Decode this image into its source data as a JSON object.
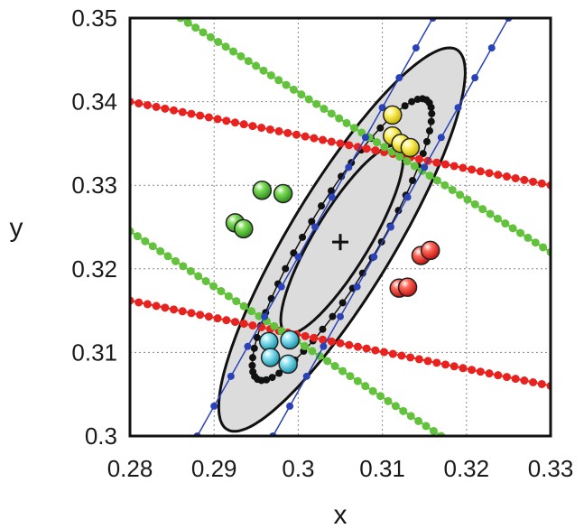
{
  "chart_data": {
    "type": "scatter",
    "xlabel": "x",
    "ylabel": "y",
    "xlim": [
      0.28,
      0.33
    ],
    "ylim": [
      0.3,
      0.35
    ],
    "x_ticks": [
      "0.28",
      "0.29",
      "0.3",
      "0.31",
      "0.32",
      "0.33"
    ],
    "y_ticks": [
      "0.3",
      "0.31",
      "0.32",
      "0.33",
      "0.34",
      "0.35"
    ],
    "grid": true,
    "colors": {
      "red": "#e8221e",
      "green": "#62c23c",
      "blue": "#2a42b8",
      "black": "#111111",
      "yellow": "#f2e21a",
      "cyan": "#54c6dc",
      "ellipse_fill": "#dcdcdc"
    },
    "center": {
      "x": 0.305,
      "y": 0.3232,
      "marker": "+"
    },
    "ellipses": [
      {
        "name": "outer",
        "cx": 0.3052,
        "cy": 0.3235,
        "semi_axes": [
          0.0265,
          0.0062
        ],
        "angle_deg": 59,
        "fill": true
      },
      {
        "name": "inner",
        "cx": 0.3052,
        "cy": 0.3235,
        "semi_axes": [
          0.013,
          0.0033
        ],
        "angle_deg": 59,
        "fill": false
      }
    ],
    "dotted_ellipse": {
      "cx": 0.3052,
      "cy": 0.3235,
      "semi_axes": [
        0.0195,
        0.0042
      ],
      "angle_deg": 59,
      "points": 56
    },
    "line_series": [
      {
        "color": "red",
        "points": [
          [
            0.28,
            0.34
          ],
          [
            0.33,
            0.33
          ]
        ]
      },
      {
        "color": "red",
        "points": [
          [
            0.28,
            0.3162
          ],
          [
            0.33,
            0.306
          ]
        ]
      },
      {
        "color": "green",
        "points": [
          [
            0.286,
            0.35
          ],
          [
            0.33,
            0.322
          ]
        ]
      },
      {
        "color": "green",
        "points": [
          [
            0.28,
            0.3245
          ],
          [
            0.317,
            0.3
          ]
        ]
      },
      {
        "color": "blue",
        "points": [
          [
            0.288,
            0.3
          ],
          [
            0.316,
            0.35
          ]
        ]
      },
      {
        "color": "blue",
        "points": [
          [
            0.297,
            0.3
          ],
          [
            0.325,
            0.35
          ]
        ]
      }
    ],
    "cluster_points": [
      {
        "color": "green",
        "points": [
          [
            0.2957,
            0.3294
          ],
          [
            0.2982,
            0.329
          ],
          [
            0.2925,
            0.3255
          ],
          [
            0.2935,
            0.3248
          ]
        ]
      },
      {
        "color": "yellow",
        "points": [
          [
            0.3112,
            0.3384
          ],
          [
            0.3112,
            0.3359
          ],
          [
            0.3122,
            0.335
          ],
          [
            0.3133,
            0.3345
          ]
        ]
      },
      {
        "color": "red",
        "points": [
          [
            0.3146,
            0.3216
          ],
          [
            0.3157,
            0.3222
          ],
          [
            0.312,
            0.3177
          ],
          [
            0.313,
            0.3178
          ]
        ]
      },
      {
        "color": "cyan",
        "points": [
          [
            0.2965,
            0.3113
          ],
          [
            0.299,
            0.3115
          ],
          [
            0.2967,
            0.3094
          ],
          [
            0.2988,
            0.3086
          ]
        ]
      }
    ]
  }
}
